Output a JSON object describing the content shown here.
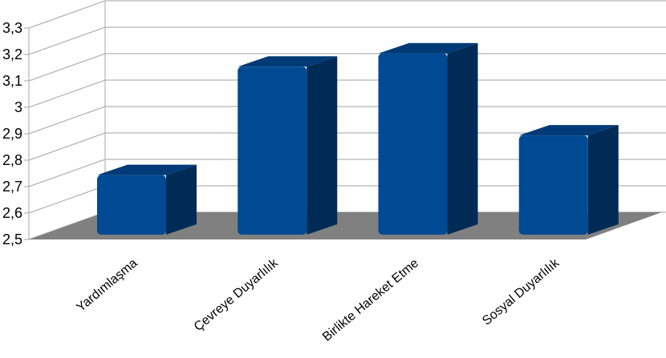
{
  "chart_data": {
    "type": "bar",
    "style": "3d",
    "categories": [
      "Yardımlaşma",
      "Çevreye Duyarlılık",
      "Birlikte Hareket Etme",
      "Sosyal Duyarlılık"
    ],
    "values": [
      2.78,
      3.19,
      3.24,
      2.93
    ],
    "ylim": [
      2.5,
      3.3
    ],
    "yticks": [
      2.5,
      2.6,
      2.7,
      2.8,
      2.9,
      3.0,
      3.1,
      3.2,
      3.3
    ],
    "ytick_labels": [
      "2,5",
      "2,6",
      "2,7",
      "2,8",
      "2,9",
      "3",
      "3,1",
      "3,2",
      "3,3"
    ],
    "grid": true,
    "legend": "none",
    "colors": {
      "bar_front": "#004A93",
      "bar_side": "#002B56",
      "bar_top": "#003A76",
      "floor": "#808080",
      "grid": "#b3b3b3"
    }
  }
}
